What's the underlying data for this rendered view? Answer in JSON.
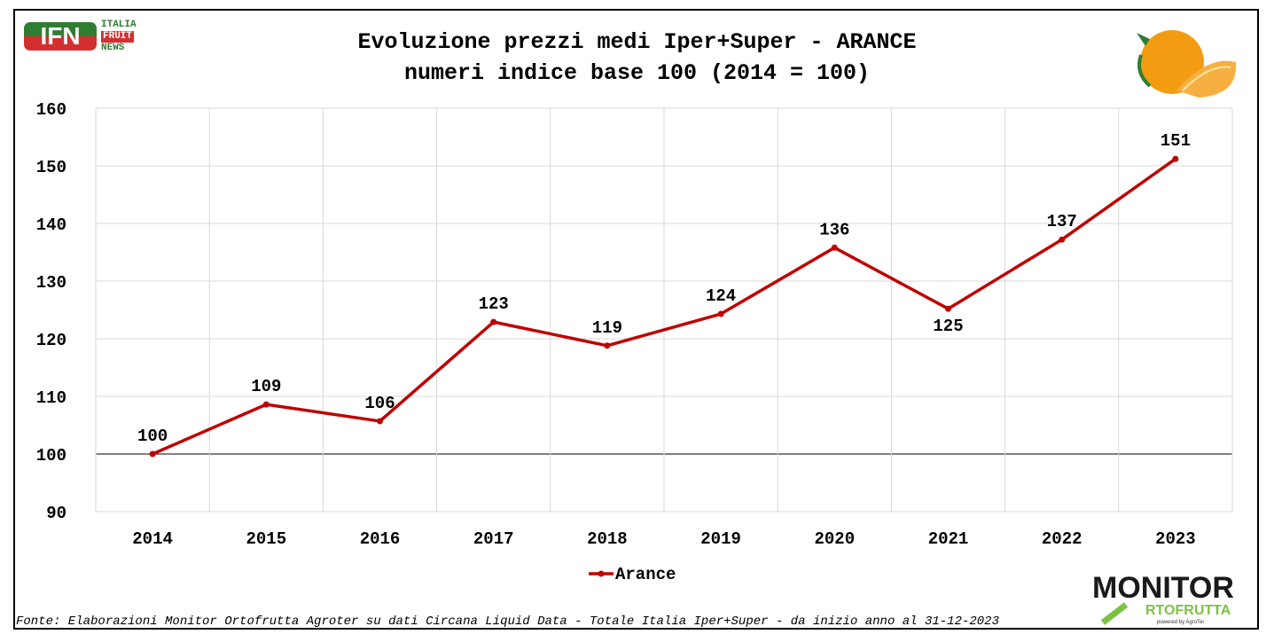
{
  "header": {
    "title_line1": "Evoluzione prezzi medi Iper+Super - ARANCE",
    "title_line2": "numeri indice base 100 (2014 = 100)"
  },
  "logos": {
    "ifn": {
      "letters": "IFN",
      "line1": "ITALIA",
      "line2": "FRUIT",
      "line3": "NEWS"
    },
    "monitor": {
      "line1": "MONITOR",
      "line2": "RTOFRUTTA",
      "line3": "powered by AgroTer"
    }
  },
  "footer": {
    "source": "Fonte: Elaborazioni Monitor Ortofrutta Agroter su dati Circana Liquid Data - Totale Italia Iper+Super -  da inizio anno al 31-12-2023"
  },
  "chart_data": {
    "type": "line",
    "categories": [
      "2014",
      "2015",
      "2016",
      "2017",
      "2018",
      "2019",
      "2020",
      "2021",
      "2022",
      "2023"
    ],
    "series": [
      {
        "name": "Arance",
        "color": "#C00000",
        "values": [
          100,
          108.6,
          105.7,
          122.9,
          118.8,
          124.3,
          135.8,
          125.2,
          137.2,
          151.2
        ],
        "labels": [
          "100",
          "109",
          "106",
          "123",
          "119",
          "124",
          "136",
          "125",
          "137",
          "151"
        ]
      }
    ],
    "ylim": [
      90,
      160
    ],
    "yticks": [
      "90",
      "100",
      "110",
      "120",
      "130",
      "140",
      "150",
      "160"
    ],
    "grid": true,
    "legend": "bottom",
    "baseline": 100
  }
}
